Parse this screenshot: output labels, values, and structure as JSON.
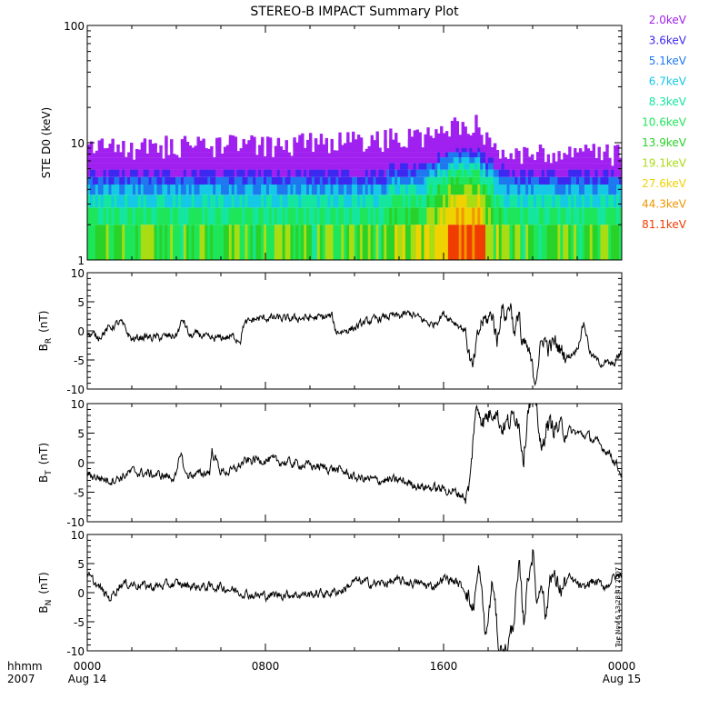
{
  "title": "STEREO-B IMPACT Summary Plot",
  "timestamp": "Tue Nov  6 13:28:47 2007",
  "time_axis": {
    "label": "hhmm",
    "year": "2007",
    "ticks": [
      {
        "hour": 0,
        "label": "0000",
        "date": "Aug 14"
      },
      {
        "hour": 8,
        "label": "0800",
        "date": ""
      },
      {
        "hour": 16,
        "label": "1600",
        "date": ""
      },
      {
        "hour": 24,
        "label": "0000",
        "date": "Aug 15"
      }
    ]
  },
  "chart_data": [
    {
      "type": "heatmap",
      "ylabel": "STE D0 (keV)",
      "yscale": "log",
      "ylim": [
        1,
        100
      ],
      "yticks": [
        {
          "value": 1,
          "label": "1"
        },
        {
          "value": 10,
          "label": "10"
        },
        {
          "value": 100,
          "label": "100"
        }
      ],
      "xlim": [
        0,
        24
      ],
      "legend_placement": "right",
      "channels": [
        {
          "label": "2.0keV",
          "color": "#a020f0"
        },
        {
          "label": "3.6keV",
          "color": "#3c28f0"
        },
        {
          "label": "5.1keV",
          "color": "#1e78f0"
        },
        {
          "label": "6.7keV",
          "color": "#14c8e6"
        },
        {
          "label": "8.3keV",
          "color": "#14e6a0"
        },
        {
          "label": "10.6keV",
          "color": "#1ee65a"
        },
        {
          "label": "13.9keV",
          "color": "#28d228"
        },
        {
          "label": "19.1keV",
          "color": "#aadc14"
        },
        {
          "label": "27.6keV",
          "color": "#f0d200"
        },
        {
          "label": "44.3keV",
          "color": "#f09600"
        },
        {
          "label": "81.1keV",
          "color": "#f03c00"
        }
      ],
      "profile": {
        "hours": [
          0,
          2,
          4,
          6,
          8,
          10,
          11,
          12,
          13,
          14,
          15,
          15.5,
          16,
          16.5,
          17,
          17.5,
          18,
          18.5,
          19,
          20,
          21,
          22,
          23,
          24
        ],
        "top_energy": [
          9.0,
          9.0,
          9.5,
          9.5,
          9.5,
          10.0,
          10.5,
          10.5,
          10.5,
          11.0,
          11.5,
          12.0,
          13.0,
          14.0,
          14.0,
          15.0,
          9.5,
          8.5,
          8.0,
          8.0,
          8.0,
          8.0,
          8.0,
          8.0
        ],
        "max_channel": [
          6,
          6,
          6,
          6,
          6,
          6,
          6,
          6,
          6,
          7,
          7,
          8,
          9,
          10,
          10,
          10,
          8,
          7,
          6,
          6,
          6,
          6,
          6,
          6
        ]
      }
    },
    {
      "type": "line",
      "ylabel": "B",
      "ylabel_sub": "R",
      "ylabel_unit": "(nT)",
      "ylim": [
        -10,
        10
      ],
      "yticks": [
        -10,
        -5,
        0,
        5,
        10
      ],
      "xlim": [
        0,
        24
      ],
      "x": [
        0,
        0.5,
        1,
        1.5,
        2,
        2.5,
        3,
        3.5,
        4,
        4.3,
        4.6,
        5,
        5.5,
        6,
        6.5,
        6.9,
        7.0,
        7.5,
        8,
        8.5,
        9,
        9.5,
        10,
        10.5,
        11,
        11.1,
        11.2,
        11.5,
        12,
        12.5,
        13,
        13.5,
        14,
        14.5,
        15,
        15.5,
        16,
        16.5,
        17,
        17.1,
        17.3,
        17.5,
        17.7,
        18,
        18.2,
        18.4,
        18.6,
        18.8,
        19,
        19.2,
        19.4,
        19.5,
        19.7,
        19.9,
        20.1,
        20.3,
        20.5,
        20.7,
        21,
        21.3,
        21.6,
        22,
        22.3,
        22.6,
        23,
        23.3,
        23.6,
        24
      ],
      "values": [
        -0.5,
        -1.0,
        0.5,
        1.5,
        -1.5,
        -1.0,
        -1.2,
        -1.0,
        -0.8,
        2.0,
        -1.0,
        -0.5,
        -1.5,
        -1.2,
        -1.0,
        -1.5,
        1.0,
        2.0,
        2.2,
        2.2,
        2.0,
        2.2,
        2.2,
        2.3,
        2.5,
        0.5,
        -0.2,
        0.0,
        0.5,
        1.5,
        2.0,
        2.5,
        2.5,
        3.0,
        2.0,
        1.0,
        3.0,
        1.5,
        0.0,
        -3.0,
        -7.0,
        -2.0,
        1.5,
        2.0,
        3.0,
        -2.0,
        4.0,
        2.5,
        5.0,
        -1.0,
        4.0,
        -3.0,
        -2.5,
        -5.0,
        -8.5,
        -4.0,
        -1.0,
        -3.0,
        -2.0,
        -3.5,
        -4.5,
        -3.0,
        1.5,
        -4.0,
        -5.5,
        -5.5,
        -6.0,
        -3.5
      ],
      "noise": 0.7
    },
    {
      "type": "line",
      "ylabel": "B",
      "ylabel_sub": "T",
      "ylabel_unit": "(nT)",
      "ylim": [
        -10,
        10
      ],
      "yticks": [
        -10,
        -5,
        0,
        5,
        10
      ],
      "xlim": [
        0,
        24
      ],
      "x": [
        0,
        0.5,
        1,
        1.5,
        2,
        3,
        4,
        4.2,
        4.4,
        5,
        5.5,
        5.6,
        6,
        6.5,
        7,
        7.5,
        8,
        9,
        10,
        11,
        11.5,
        12,
        13,
        14,
        15,
        16,
        16.5,
        16.9,
        17.0,
        17.2,
        17.4,
        17.6,
        17.8,
        18,
        18.3,
        18.6,
        19,
        19.3,
        19.6,
        19.8,
        20.0,
        20.2,
        20.4,
        20.6,
        21,
        21.5,
        22,
        22.5,
        23,
        23.5,
        24
      ],
      "values": [
        -2.0,
        -2.5,
        -3.0,
        -2.5,
        -1.5,
        -2.0,
        -2.5,
        2.0,
        -2.0,
        -2.0,
        -1.5,
        2.0,
        -1.5,
        -1.5,
        0.0,
        0.5,
        0.5,
        0.0,
        -0.5,
        -1.0,
        -1.5,
        -2.5,
        -3.0,
        -3.0,
        -4.0,
        -4.5,
        -5.0,
        -5.5,
        -6.5,
        -3.0,
        8.0,
        9.0,
        7.0,
        8.0,
        9.5,
        6.0,
        7.0,
        8.5,
        1.0,
        10.0,
        10.0,
        9.0,
        1.0,
        6.5,
        6.0,
        5.5,
        5.0,
        4.5,
        3.0,
        1.5,
        -2.0
      ],
      "noise": 0.8
    },
    {
      "type": "line",
      "ylabel": "B",
      "ylabel_sub": "N",
      "ylabel_unit": "(nT)",
      "ylim": [
        -10,
        10
      ],
      "yticks": [
        -10,
        -5,
        0,
        5,
        10
      ],
      "xlim": [
        0,
        24
      ],
      "x": [
        0,
        0.5,
        1,
        1.5,
        2,
        3,
        4,
        5,
        6,
        7,
        7.5,
        8,
        9,
        10,
        11,
        11.5,
        12,
        13,
        14,
        15,
        15.5,
        16,
        16.5,
        17,
        17.3,
        17.6,
        17.9,
        18.2,
        18.5,
        18.8,
        19.1,
        19.4,
        19.6,
        19.8,
        20.0,
        20.2,
        20.4,
        20.6,
        20.8,
        21,
        21.3,
        21.6,
        22,
        22.3,
        22.6,
        23,
        23.3,
        23.6,
        24
      ],
      "values": [
        3.0,
        1.0,
        -1.0,
        1.5,
        1.5,
        1.0,
        1.5,
        1.0,
        1.0,
        0.0,
        -0.5,
        -0.5,
        -0.3,
        -0.3,
        0.0,
        0.5,
        2.0,
        1.5,
        2.0,
        1.5,
        1.0,
        2.5,
        2.0,
        0.5,
        -3.0,
        4.0,
        -8.0,
        2.0,
        -10.0,
        -10.0,
        -6.0,
        4.0,
        -5.0,
        3.0,
        7.0,
        -2.0,
        3.0,
        -5.0,
        4.0,
        2.0,
        0.5,
        2.5,
        1.5,
        0.5,
        2.0,
        1.5,
        1.0,
        2.5,
        3.0
      ],
      "noise": 0.8
    }
  ]
}
